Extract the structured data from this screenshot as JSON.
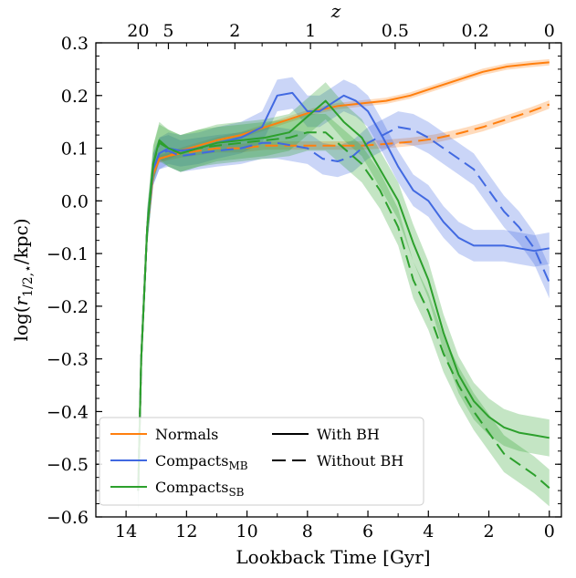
{
  "chart_data": {
    "type": "line",
    "xlabel": "Lookback Time [Gyr]",
    "ylabel_parts": [
      "log(",
      "r",
      "1/2,⋆",
      "/kpc)"
    ],
    "top_axis_label": "z",
    "xlim": [
      15.0,
      -0.4
    ],
    "ylim": [
      -0.6,
      0.3
    ],
    "xticks": [
      14,
      12,
      10,
      8,
      6,
      4,
      2,
      0
    ],
    "yticks": [
      -0.6,
      -0.5,
      -0.4,
      -0.3,
      -0.2,
      -0.1,
      0.0,
      0.1,
      0.2,
      0.3
    ],
    "ytick_labels": [
      "−0.6",
      "−0.5",
      "−0.4",
      "−0.3",
      "−0.2",
      "−0.1",
      "0.0",
      "0.1",
      "0.2",
      "0.3"
    ],
    "top_ticks": [
      {
        "label": "20",
        "t": 13.6
      },
      {
        "label": "5",
        "t": 12.6
      },
      {
        "label": "2",
        "t": 10.4
      },
      {
        "label": "1",
        "t": 7.9
      },
      {
        "label": "0.5",
        "t": 5.1
      },
      {
        "label": "0.2",
        "t": 2.45
      },
      {
        "label": "0",
        "t": 0.0
      }
    ],
    "legend": {
      "position": "lower-left",
      "entries": [
        {
          "label": "Normals",
          "sub": "",
          "color": "#ff7f0e",
          "style": "solid"
        },
        {
          "label": "Compacts",
          "sub": "MB",
          "color": "#4169e1",
          "style": "solid"
        },
        {
          "label": "Compacts",
          "sub": "SB",
          "color": "#2ca02c",
          "style": "solid"
        },
        {
          "label": "With BH",
          "sub": "",
          "color": "#000000",
          "style": "solid"
        },
        {
          "label": "Without BH",
          "sub": "",
          "color": "#000000",
          "style": "dashed"
        }
      ]
    },
    "series": [
      {
        "name": "Normals (With BH)",
        "color": "#ff7f0e",
        "dash": false,
        "band": 0.006,
        "x": [
          13.6,
          13.5,
          13.3,
          13.1,
          12.9,
          12.6,
          12.2,
          11.6,
          11.0,
          10.2,
          9.4,
          8.6,
          7.8,
          7.0,
          6.2,
          5.4,
          4.6,
          3.8,
          3.0,
          2.2,
          1.4,
          0.6,
          0.0
        ],
        "y": [
          -0.55,
          -0.3,
          -0.05,
          0.05,
          0.08,
          0.085,
          0.095,
          0.105,
          0.115,
          0.125,
          0.14,
          0.155,
          0.17,
          0.18,
          0.185,
          0.19,
          0.2,
          0.215,
          0.23,
          0.245,
          0.255,
          0.26,
          0.263
        ]
      },
      {
        "name": "Normals (Without BH)",
        "color": "#ff7f0e",
        "dash": true,
        "band": 0.008,
        "x": [
          13.6,
          13.5,
          13.3,
          13.1,
          12.9,
          12.6,
          12.2,
          11.6,
          11.0,
          10.2,
          9.4,
          8.6,
          7.8,
          7.0,
          6.2,
          5.4,
          4.6,
          3.8,
          3.0,
          2.2,
          1.4,
          0.6,
          0.0
        ],
        "y": [
          -0.55,
          -0.3,
          -0.05,
          0.05,
          0.08,
          0.085,
          0.09,
          0.095,
          0.1,
          0.1,
          0.105,
          0.105,
          0.105,
          0.105,
          0.105,
          0.108,
          0.112,
          0.118,
          0.128,
          0.14,
          0.155,
          0.17,
          0.183
        ]
      },
      {
        "name": "Compacts MB (With BH)",
        "color": "#4169e1",
        "dash": false,
        "band": 0.03,
        "x": [
          13.6,
          13.5,
          13.3,
          13.1,
          12.9,
          12.6,
          12.2,
          11.6,
          11.0,
          10.2,
          9.5,
          9.0,
          8.5,
          8.0,
          7.6,
          7.2,
          6.8,
          6.4,
          6.0,
          5.5,
          5.0,
          4.5,
          4.0,
          3.5,
          3.0,
          2.5,
          2.0,
          1.5,
          1.0,
          0.5,
          0.0
        ],
        "y": [
          -0.55,
          -0.3,
          -0.05,
          0.06,
          0.09,
          0.1,
          0.095,
          0.1,
          0.11,
          0.12,
          0.14,
          0.2,
          0.205,
          0.17,
          0.17,
          0.185,
          0.2,
          0.19,
          0.17,
          0.12,
          0.065,
          0.02,
          0.0,
          -0.04,
          -0.07,
          -0.085,
          -0.085,
          -0.085,
          -0.09,
          -0.095,
          -0.09
        ]
      },
      {
        "name": "Compacts MB (Without BH)",
        "color": "#4169e1",
        "dash": true,
        "band": 0.03,
        "x": [
          13.6,
          13.5,
          13.3,
          13.1,
          12.9,
          12.6,
          12.2,
          11.6,
          11.0,
          10.2,
          9.5,
          9.0,
          8.5,
          8.0,
          7.5,
          7.0,
          6.5,
          6.0,
          5.5,
          5.0,
          4.5,
          4.0,
          3.5,
          3.0,
          2.5,
          2.0,
          1.5,
          1.0,
          0.5,
          0.0
        ],
        "y": [
          -0.55,
          -0.3,
          -0.05,
          0.06,
          0.09,
          0.095,
          0.085,
          0.09,
          0.095,
          0.1,
          0.11,
          0.11,
          0.105,
          0.1,
          0.08,
          0.075,
          0.085,
          0.11,
          0.125,
          0.14,
          0.135,
          0.12,
          0.1,
          0.08,
          0.06,
          0.02,
          -0.02,
          -0.05,
          -0.09,
          -0.155
        ]
      },
      {
        "name": "Compacts SB (With BH)",
        "color": "#2ca02c",
        "dash": false,
        "band": 0.035,
        "x": [
          13.6,
          13.5,
          13.3,
          13.1,
          12.9,
          12.6,
          12.2,
          11.6,
          11.0,
          10.2,
          9.4,
          8.6,
          8.0,
          7.4,
          6.8,
          6.2,
          5.6,
          5.0,
          4.5,
          4.0,
          3.5,
          3.0,
          2.5,
          2.0,
          1.5,
          1.0,
          0.5,
          0.0
        ],
        "y": [
          -0.55,
          -0.3,
          -0.05,
          0.07,
          0.115,
          0.1,
          0.09,
          0.1,
          0.11,
          0.115,
          0.12,
          0.13,
          0.16,
          0.19,
          0.15,
          0.12,
          0.06,
          0.0,
          -0.08,
          -0.15,
          -0.25,
          -0.33,
          -0.38,
          -0.41,
          -0.43,
          -0.44,
          -0.445,
          -0.45
        ]
      },
      {
        "name": "Compacts SB (Without BH)",
        "color": "#2ca02c",
        "dash": true,
        "band": 0.035,
        "x": [
          13.6,
          13.5,
          13.3,
          13.1,
          12.9,
          12.6,
          12.2,
          11.6,
          11.0,
          10.2,
          9.4,
          8.6,
          8.0,
          7.4,
          6.8,
          6.2,
          5.6,
          5.0,
          4.5,
          4.0,
          3.5,
          3.0,
          2.5,
          2.0,
          1.5,
          1.0,
          0.5,
          0.0
        ],
        "y": [
          -0.55,
          -0.3,
          -0.05,
          0.07,
          0.11,
          0.1,
          0.09,
          0.1,
          0.105,
          0.11,
          0.115,
          0.12,
          0.13,
          0.13,
          0.1,
          0.07,
          0.02,
          -0.05,
          -0.15,
          -0.21,
          -0.29,
          -0.35,
          -0.4,
          -0.44,
          -0.48,
          -0.5,
          -0.52,
          -0.545
        ]
      }
    ]
  }
}
